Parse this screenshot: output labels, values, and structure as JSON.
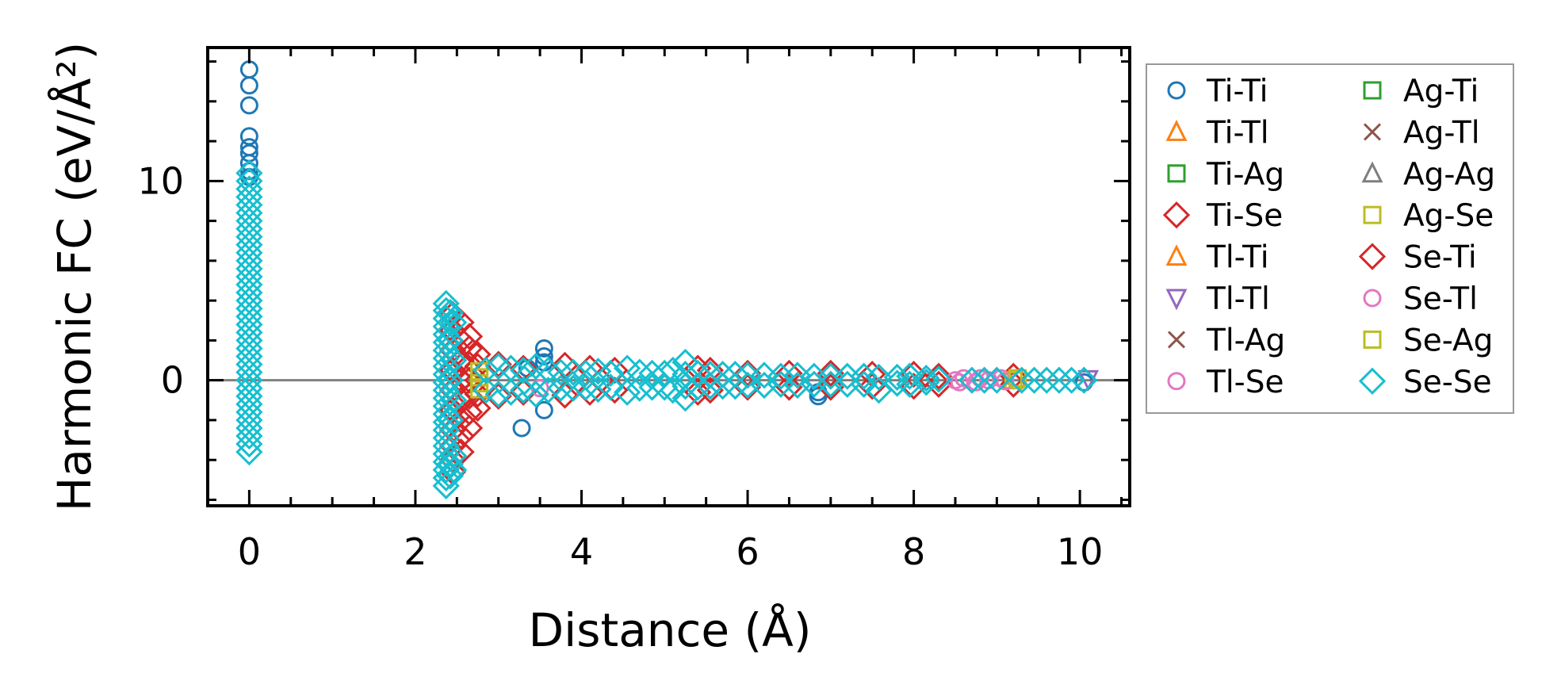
{
  "chart_data": {
    "type": "scatter",
    "title": "",
    "xlabel": "Distance (Å)",
    "ylabel": "Harmonic FC (eV/Å²)",
    "xlim": [
      -0.5,
      10.6
    ],
    "ylim": [
      -6.3,
      16.7
    ],
    "xticks": [
      0,
      2,
      4,
      6,
      8,
      10
    ],
    "xtick_labels": [
      "0",
      "2",
      "4",
      "6",
      "8",
      "10"
    ],
    "xminor_step": 0.5,
    "yticks": [
      0,
      10
    ],
    "ytick_labels": [
      "0",
      "10"
    ],
    "yminor_step": 2,
    "grid": false,
    "reference_line_y": 0,
    "legend_position": "outside-right",
    "series": [
      {
        "name": "Ti-Ti",
        "marker": "circle",
        "color": "#1f77b4",
        "points": [
          [
            0,
            15.6
          ],
          [
            0,
            14.8
          ],
          [
            0,
            13.8
          ],
          [
            0,
            12.25
          ],
          [
            0,
            11.7
          ],
          [
            0,
            11.4
          ],
          [
            0,
            10.9
          ],
          [
            0,
            10.5
          ],
          [
            0,
            10.2
          ],
          [
            3.28,
            -2.4
          ],
          [
            3.55,
            1.6
          ],
          [
            3.55,
            1.2
          ],
          [
            3.55,
            0.9
          ],
          [
            3.55,
            -1.5
          ],
          [
            3.35,
            0.6
          ],
          [
            6.85,
            -0.8
          ],
          [
            6.85,
            -0.6
          ],
          [
            10.05,
            -0.1
          ]
        ]
      },
      {
        "name": "Ti-Tl",
        "marker": "triangle-up",
        "color": "#ff7f0e",
        "points": []
      },
      {
        "name": "Ti-Ag",
        "marker": "square",
        "color": "#2ca02c",
        "points": []
      },
      {
        "name": "Ti-Se",
        "marker": "diamond",
        "color": "#d62728",
        "points": [
          [
            2.45,
            -4.6
          ],
          [
            2.45,
            -4.0
          ],
          [
            2.45,
            -3.3
          ],
          [
            2.45,
            -2.5
          ],
          [
            2.45,
            -1.5
          ],
          [
            2.45,
            -0.5
          ],
          [
            2.45,
            0.5
          ],
          [
            2.45,
            1.5
          ],
          [
            2.45,
            2.5
          ],
          [
            2.45,
            3.3
          ],
          [
            2.55,
            -3.6
          ],
          [
            2.55,
            -2.8
          ],
          [
            2.55,
            -2.0
          ],
          [
            2.55,
            -1.0
          ],
          [
            2.55,
            0
          ],
          [
            2.55,
            1.0
          ],
          [
            2.55,
            2.0
          ],
          [
            2.55,
            2.9
          ],
          [
            2.65,
            -2.4
          ],
          [
            2.65,
            -1.6
          ],
          [
            2.65,
            -0.8
          ],
          [
            2.65,
            0
          ],
          [
            2.65,
            0.8
          ],
          [
            2.65,
            1.6
          ],
          [
            2.65,
            2.2
          ],
          [
            2.75,
            -1.4
          ],
          [
            2.75,
            -0.7
          ],
          [
            2.75,
            0
          ],
          [
            2.75,
            0.7
          ],
          [
            2.75,
            1.3
          ],
          [
            3.0,
            0.8
          ],
          [
            3.0,
            -0.8
          ],
          [
            3.3,
            0.6
          ],
          [
            3.3,
            -0.6
          ],
          [
            3.8,
            0.75
          ],
          [
            3.8,
            -0.75
          ],
          [
            4.1,
            0.6
          ],
          [
            4.1,
            -0.6
          ],
          [
            4.4,
            0.5
          ],
          [
            4.4,
            -0.5
          ],
          [
            5.4,
            0.6
          ],
          [
            5.4,
            -0.6
          ],
          [
            5.55,
            0.5
          ],
          [
            5.55,
            -0.5
          ],
          [
            6.0,
            0.35
          ],
          [
            6.0,
            -0.35
          ],
          [
            6.5,
            0.35
          ],
          [
            6.5,
            -0.35
          ],
          [
            7.0,
            0.35
          ],
          [
            7.0,
            -0.35
          ],
          [
            7.5,
            0.3
          ],
          [
            7.5,
            -0.3
          ],
          [
            8.0,
            0.3
          ],
          [
            8.0,
            -0.3
          ],
          [
            8.3,
            0.2
          ],
          [
            8.3,
            -0.2
          ],
          [
            9.2,
            0.2
          ],
          [
            9.2,
            -0.2
          ]
        ]
      },
      {
        "name": "Tl-Ti",
        "marker": "triangle-up",
        "color": "#ff7f0e",
        "points": []
      },
      {
        "name": "Tl-Tl",
        "marker": "triangle-down",
        "color": "#9467bd",
        "points": [
          [
            10.1,
            0.05
          ]
        ]
      },
      {
        "name": "Tl-Ag",
        "marker": "x",
        "color": "#8c564b",
        "points": []
      },
      {
        "name": "Tl-Se",
        "marker": "circle",
        "color": "#e377c2",
        "points": [
          [
            3.5,
            -0.4
          ],
          [
            8.5,
            0
          ],
          [
            8.6,
            0.1
          ],
          [
            8.75,
            -0.1
          ],
          [
            8.9,
            0
          ],
          [
            9.05,
            0.1
          ]
        ]
      },
      {
        "name": "Ag-Ti",
        "marker": "square",
        "color": "#2ca02c",
        "points": []
      },
      {
        "name": "Ag-Tl",
        "marker": "x",
        "color": "#8c564b",
        "points": []
      },
      {
        "name": "Ag-Ag",
        "marker": "triangle-up",
        "color": "#7f7f7f",
        "points": []
      },
      {
        "name": "Ag-Se",
        "marker": "square",
        "color": "#bcbd22",
        "points": [
          [
            2.77,
            0.45
          ],
          [
            2.77,
            0.15
          ],
          [
            2.77,
            -0.15
          ],
          [
            2.77,
            -0.45
          ],
          [
            9.2,
            0
          ]
        ]
      },
      {
        "name": "Se-Ti",
        "marker": "diamond",
        "color": "#d62728",
        "points": []
      },
      {
        "name": "Se-Tl",
        "marker": "circle",
        "color": "#e377c2",
        "points": [
          [
            8.55,
            -0.1
          ],
          [
            8.8,
            0.1
          ],
          [
            9.1,
            -0.05
          ]
        ]
      },
      {
        "name": "Se-Ag",
        "marker": "square",
        "color": "#bcbd22",
        "points": [
          [
            9.25,
            0.1
          ]
        ]
      },
      {
        "name": "Se-Se",
        "marker": "diamond",
        "color": "#17becf",
        "points": [
          [
            0,
            -3.6
          ],
          [
            0,
            -3.2
          ],
          [
            0,
            -2.8
          ],
          [
            0,
            -2.4
          ],
          [
            0,
            -2.0
          ],
          [
            0,
            -1.6
          ],
          [
            0,
            -1.2
          ],
          [
            0,
            -0.8
          ],
          [
            0,
            -0.4
          ],
          [
            0,
            0
          ],
          [
            0,
            0.4
          ],
          [
            0,
            0.8
          ],
          [
            0,
            1.2
          ],
          [
            0,
            1.6
          ],
          [
            0,
            2.0
          ],
          [
            0,
            2.4
          ],
          [
            0,
            2.8
          ],
          [
            0,
            3.2
          ],
          [
            0,
            3.6
          ],
          [
            0,
            4.0
          ],
          [
            0,
            4.4
          ],
          [
            0,
            4.8
          ],
          [
            0,
            5.2
          ],
          [
            0,
            5.6
          ],
          [
            0,
            6.0
          ],
          [
            0,
            6.4
          ],
          [
            0,
            6.8
          ],
          [
            0,
            7.2
          ],
          [
            0,
            7.6
          ],
          [
            0,
            8.0
          ],
          [
            0,
            8.4
          ],
          [
            0,
            8.8
          ],
          [
            0,
            9.2
          ],
          [
            0,
            9.6
          ],
          [
            0,
            10.0
          ],
          [
            0,
            10.4
          ],
          [
            2.37,
            -5.3
          ],
          [
            2.37,
            -4.9
          ],
          [
            2.37,
            -4.5
          ],
          [
            2.37,
            -4.1
          ],
          [
            2.37,
            -3.7
          ],
          [
            2.37,
            -3.3
          ],
          [
            2.37,
            -2.9
          ],
          [
            2.37,
            -2.5
          ],
          [
            2.37,
            -2.1
          ],
          [
            2.37,
            -1.7
          ],
          [
            2.37,
            -1.3
          ],
          [
            2.37,
            -0.9
          ],
          [
            2.37,
            -0.5
          ],
          [
            2.37,
            -0.1
          ],
          [
            2.37,
            0.3
          ],
          [
            2.37,
            0.7
          ],
          [
            2.37,
            1.1
          ],
          [
            2.37,
            1.5
          ],
          [
            2.37,
            1.9
          ],
          [
            2.37,
            2.3
          ],
          [
            2.37,
            2.7
          ],
          [
            2.37,
            3.1
          ],
          [
            2.37,
            3.5
          ],
          [
            2.37,
            3.85
          ],
          [
            2.42,
            -4.8
          ],
          [
            2.42,
            -4.2
          ],
          [
            2.42,
            -2.0
          ],
          [
            2.42,
            0
          ],
          [
            2.42,
            2.0
          ],
          [
            2.42,
            3.4
          ],
          [
            2.46,
            -4.5
          ],
          [
            2.46,
            -3.8
          ],
          [
            2.46,
            -1.0
          ],
          [
            2.46,
            1.0
          ],
          [
            2.46,
            2.9
          ],
          [
            2.85,
            0.5
          ],
          [
            2.85,
            -0.5
          ],
          [
            3.0,
            0.7
          ],
          [
            3.0,
            -0.7
          ],
          [
            3.15,
            0.6
          ],
          [
            3.15,
            -0.6
          ],
          [
            3.3,
            0.5
          ],
          [
            3.3,
            -0.5
          ],
          [
            3.45,
            0.7
          ],
          [
            3.45,
            -0.7
          ],
          [
            3.6,
            0.5
          ],
          [
            3.6,
            -0.5
          ],
          [
            3.75,
            0.4
          ],
          [
            3.75,
            -0.4
          ],
          [
            3.9,
            0.4
          ],
          [
            3.9,
            -0.4
          ],
          [
            4.05,
            0.35
          ],
          [
            4.05,
            -0.35
          ],
          [
            4.2,
            0.45
          ],
          [
            4.2,
            -0.45
          ],
          [
            4.35,
            0.35
          ],
          [
            4.35,
            -0.35
          ],
          [
            4.55,
            0.6
          ],
          [
            4.55,
            -0.6
          ],
          [
            4.7,
            0.4
          ],
          [
            4.7,
            -0.4
          ],
          [
            4.85,
            0.35
          ],
          [
            4.85,
            -0.35
          ],
          [
            5.0,
            0.35
          ],
          [
            5.0,
            -0.35
          ],
          [
            5.1,
            0.5
          ],
          [
            5.1,
            -0.5
          ],
          [
            5.25,
            0.9
          ],
          [
            5.25,
            0.3
          ],
          [
            5.25,
            -0.3
          ],
          [
            5.25,
            -0.9
          ],
          [
            5.4,
            0.35
          ],
          [
            5.4,
            -0.35
          ],
          [
            5.55,
            0.3
          ],
          [
            5.55,
            -0.3
          ],
          [
            5.7,
            0.3
          ],
          [
            5.7,
            -0.3
          ],
          [
            5.85,
            0.3
          ],
          [
            5.85,
            -0.3
          ],
          [
            6.0,
            0.25
          ],
          [
            6.0,
            -0.25
          ],
          [
            6.2,
            0.25
          ],
          [
            6.2,
            -0.25
          ],
          [
            6.4,
            0.2
          ],
          [
            6.4,
            -0.2
          ],
          [
            6.6,
            0.25
          ],
          [
            6.6,
            -0.25
          ],
          [
            6.8,
            0.2
          ],
          [
            6.8,
            -0.2
          ],
          [
            7.0,
            0.2
          ],
          [
            7.0,
            -0.2
          ],
          [
            7.2,
            0.2
          ],
          [
            7.2,
            -0.2
          ],
          [
            7.4,
            0.2
          ],
          [
            7.4,
            -0.2
          ],
          [
            7.58,
            0.15
          ],
          [
            7.58,
            -0.5
          ],
          [
            7.8,
            0.15
          ],
          [
            7.8,
            -0.15
          ],
          [
            7.95,
            0.2
          ],
          [
            7.95,
            -0.2
          ],
          [
            8.15,
            0.1
          ],
          [
            8.15,
            -0.1
          ],
          [
            8.3,
            0.05
          ],
          [
            8.7,
            0
          ],
          [
            8.85,
            0
          ],
          [
            9.0,
            0
          ],
          [
            9.3,
            0
          ],
          [
            9.45,
            0
          ],
          [
            9.6,
            0
          ],
          [
            9.75,
            0
          ],
          [
            9.9,
            0
          ],
          [
            10.05,
            0
          ]
        ]
      }
    ]
  }
}
